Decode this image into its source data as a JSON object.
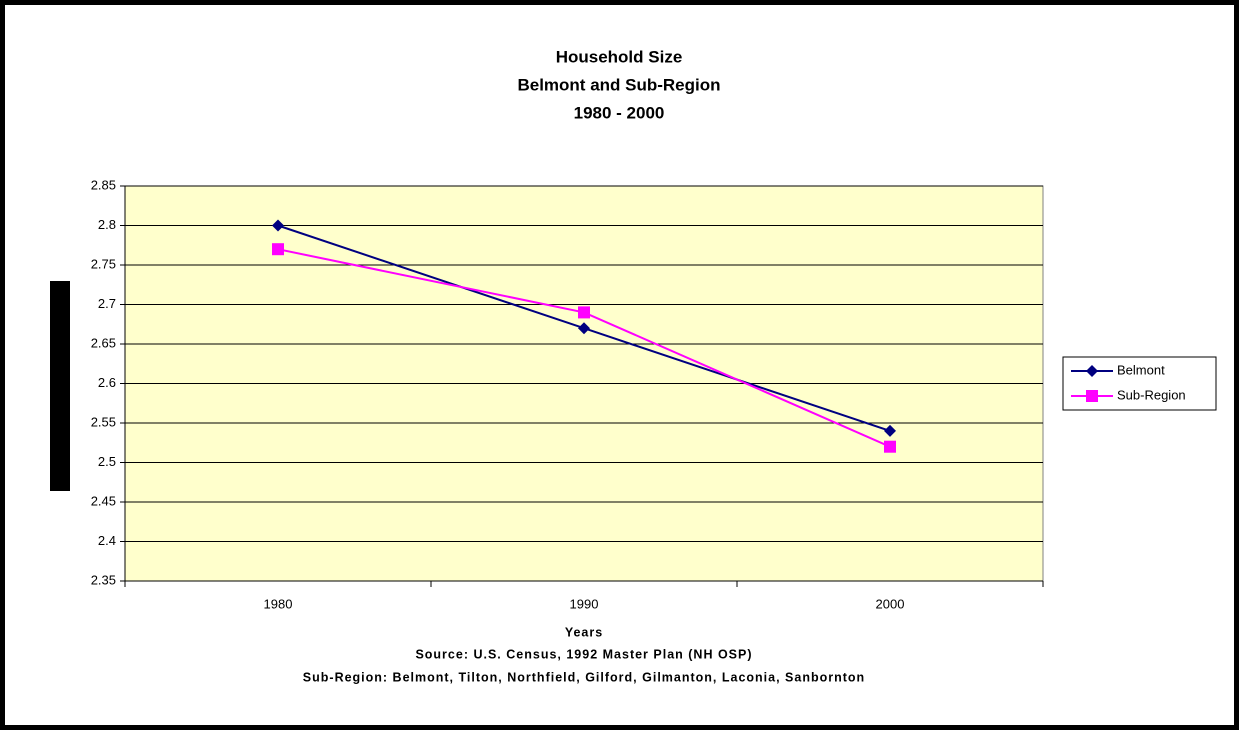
{
  "chart_data": {
    "type": "line",
    "title": "Household Size",
    "subtitle": [
      "Belmont and Sub-Region",
      "1980 - 2000"
    ],
    "categories": [
      "1980",
      "1990",
      "2000"
    ],
    "series": [
      {
        "name": "Belmont",
        "color": "#000080",
        "marker": "diamond",
        "values": [
          2.8,
          2.67,
          2.54
        ]
      },
      {
        "name": "Sub-Region",
        "color": "#ff00ff",
        "marker": "square",
        "values": [
          2.77,
          2.69,
          2.52
        ]
      }
    ],
    "ylim": [
      2.35,
      2.85
    ],
    "yticks": [
      2.35,
      2.4,
      2.45,
      2.5,
      2.55,
      2.6,
      2.65,
      2.7,
      2.75,
      2.8,
      2.85
    ],
    "grid": true,
    "plot_background": "#ffffcc",
    "xlabel": "Years",
    "annotations": [
      "Source: U.S. Census, 1992 Master Plan (NH OSP)",
      "Sub-Region: Belmont, Tilton, Northfield, Gilford, Gilmanton, Laconia, Sanbornton"
    ],
    "legend": "right"
  }
}
